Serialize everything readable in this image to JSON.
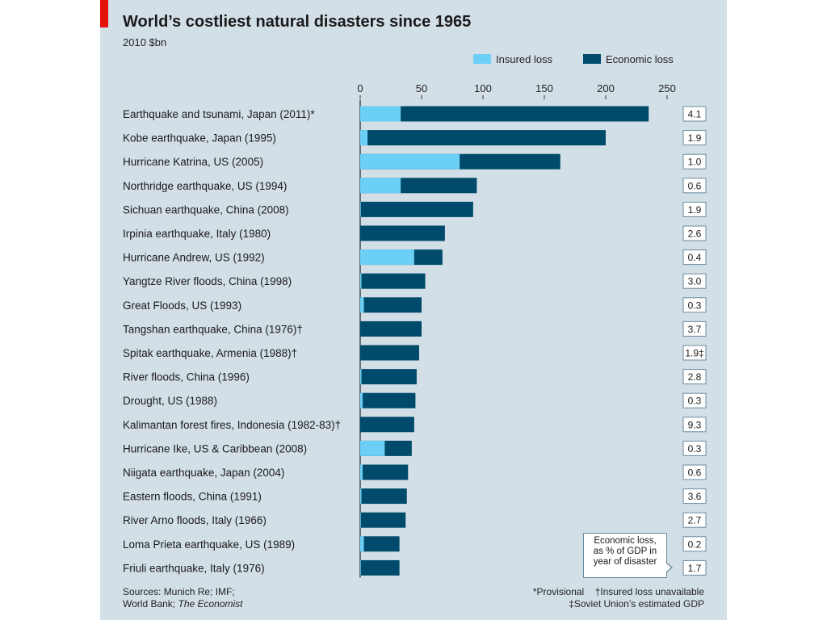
{
  "header": {
    "title": "World’s costliest natural disasters since 1965",
    "subtitle": "2010 $bn"
  },
  "legend": {
    "insured_label": "Insured loss",
    "economic_label": "Economic loss"
  },
  "callout": {
    "line1": "Economic loss,",
    "line2": "as % of GDP in",
    "line3": "year of disaster"
  },
  "footer": {
    "sources_line1": "Sources: Munich Re; IMF;",
    "sources_line2_prefix": "World Bank; ",
    "sources_line2_italic": "The Economist",
    "note_provisional": "*Provisional",
    "note_insured": "†Insured loss unavailable",
    "note_soviet": "‡Soviet Union’s estimated GDP"
  },
  "colors": {
    "insured": "#6ccff6",
    "economic": "#004b6b",
    "background": "#d3dfe7",
    "accent_red": "#e3120b"
  },
  "chart_data": {
    "type": "bar",
    "orientation": "horizontal",
    "title": "World’s costliest natural disasters since 1965",
    "subtitle": "2010 $bn",
    "xlim": [
      0,
      250
    ],
    "x_ticks": [
      0,
      50,
      100,
      150,
      200,
      250
    ],
    "grid": false,
    "legend_position": "top-right",
    "categories": [
      "Earthquake and tsunami, Japan (2011)*",
      "Kobe earthquake, Japan (1995)",
      "Hurricane Katrina, US (2005)",
      "Northridge earthquake, US (1994)",
      "Sichuan earthquake, China (2008)",
      "Irpinia earthquake, Italy (1980)",
      "Hurricane Andrew, US (1992)",
      "Yangtze River floods, China (1998)",
      "Great Floods, US (1993)",
      "Tangshan earthquake, China (1976)†",
      "Spitak earthquake, Armenia (1988)†",
      "River floods, China (1996)",
      "Drought, US (1988)",
      "Kalimantan forest fires, Indonesia (1982-83)†",
      "Hurricane Ike, US & Caribbean (2008)",
      "Niigata earthquake, Japan (2004)",
      "Eastern floods, China (1991)",
      "River Arno floods, Italy (1966)",
      "Loma Prieta earthquake, US (1989)",
      "Friuli earthquake, Italy (1976)"
    ],
    "series": [
      {
        "name": "Insured loss",
        "values": [
          33,
          6,
          81,
          33,
          0.5,
          0,
          44,
          1,
          3,
          0,
          0,
          1,
          2,
          0,
          20,
          2,
          1,
          0.5,
          3,
          0.5
        ]
      },
      {
        "name": "Economic loss",
        "values": [
          235,
          200,
          163,
          95,
          92,
          69,
          67,
          53,
          50,
          50,
          48,
          46,
          45,
          44,
          42,
          39,
          38,
          37,
          32,
          32
        ]
      }
    ],
    "gdp_label": "Economic loss, as % of GDP in year of disaster",
    "gdp_percent": [
      "4.1",
      "1.9",
      "1.0",
      "0.6",
      "1.9",
      "2.6",
      "0.4",
      "3.0",
      "0.3",
      "3.7",
      "1.9‡",
      "2.8",
      "0.3",
      "9.3",
      "0.3",
      "0.6",
      "3.6",
      "2.7",
      "0.2",
      "1.7"
    ]
  }
}
